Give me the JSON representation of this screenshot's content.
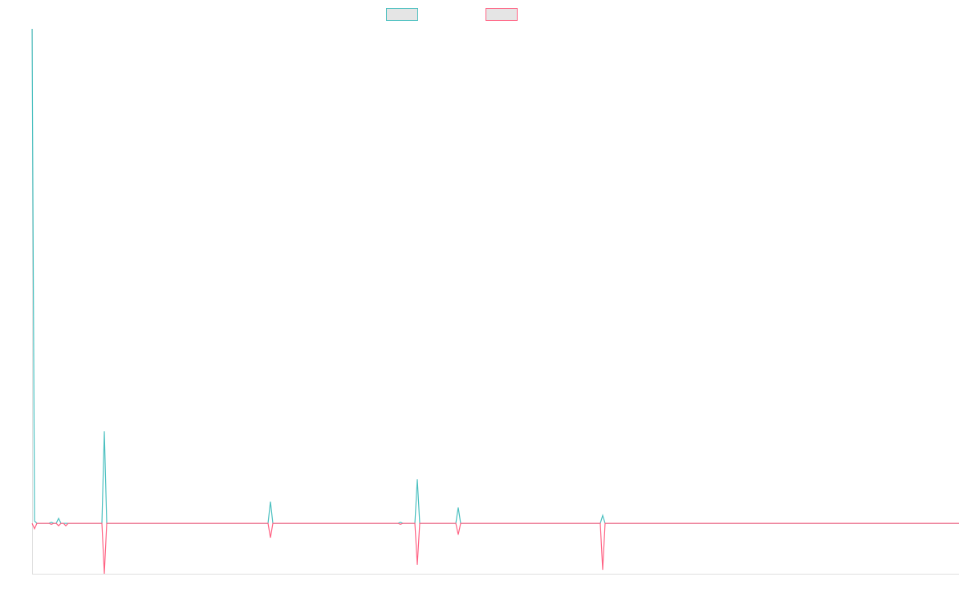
{
  "chart_data": {
    "type": "line",
    "title": "",
    "xlabel": "",
    "ylabel": "",
    "grid": false,
    "legend_placement": "top",
    "x": [
      0,
      1,
      2,
      7,
      8,
      9,
      10,
      11,
      12,
      13,
      14,
      15,
      29,
      30,
      31,
      98,
      99,
      100,
      152,
      153,
      154,
      159,
      160,
      161,
      176,
      177,
      178,
      236,
      237,
      238,
      385
    ],
    "xlim": [
      0,
      385
    ],
    "ylim": [
      -10.2,
      100
    ],
    "series": [
      {
        "color": "#4bc0c0",
        "values": [
          100,
          0.5,
          0,
          0,
          0.2,
          0,
          0,
          1,
          0,
          0,
          0,
          0,
          0,
          18.6,
          0,
          0,
          4.4,
          0,
          0,
          0.2,
          0,
          0,
          8.9,
          0,
          0,
          3.2,
          0,
          0,
          1.6,
          0,
          0
        ]
      },
      {
        "color": "#ff6384",
        "values": [
          0,
          -1.1,
          0,
          0,
          -0.2,
          0,
          0,
          -0.5,
          0,
          0,
          -0.5,
          0,
          0,
          -10.2,
          0,
          0,
          -2.9,
          0,
          0,
          -0.2,
          0,
          0,
          -8.4,
          0,
          0,
          -2.3,
          0,
          0,
          -9.4,
          0,
          0
        ]
      }
    ],
    "legend_fill": "#e5e5e5",
    "axis_color": "#e0e0e0"
  }
}
